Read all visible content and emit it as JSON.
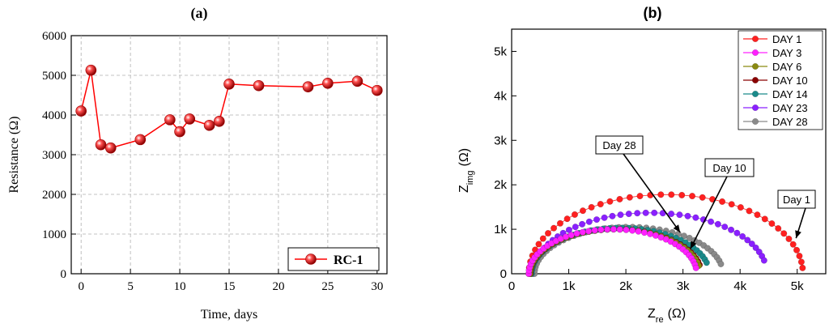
{
  "chart_data": [
    {
      "panel_label": "(a)",
      "type": "line",
      "xlabel": "Time, days",
      "ylabel": "Resistance (Ω)",
      "xlim": [
        -1,
        31
      ],
      "ylim": [
        0,
        6000
      ],
      "xticks": [
        "0",
        "5",
        "10",
        "15",
        "20",
        "25",
        "30"
      ],
      "yticks": [
        "0",
        "1000",
        "2000",
        "3000",
        "4000",
        "5000",
        "6000"
      ],
      "grid": true,
      "legend_position": "bottom-right",
      "series": [
        {
          "name": "RC-1",
          "color": "#ff0000",
          "marker": "sphere",
          "x": [
            0,
            1,
            2,
            3,
            6,
            9,
            10,
            11,
            13,
            14,
            15,
            18,
            23,
            25,
            28,
            30
          ],
          "y": [
            4100,
            5130,
            3250,
            3170,
            3380,
            3880,
            3580,
            3900,
            3740,
            3840,
            4780,
            4740,
            4710,
            4800,
            4850,
            4620
          ]
        }
      ]
    },
    {
      "panel_label": "(b)",
      "type": "scatter",
      "xlabel": "Z_re (Ω)",
      "xlabel_main": "Z",
      "xlabel_sub": "re",
      "xlabel_unit": "(Ω)",
      "ylabel_main": "Z",
      "ylabel_sub": "img",
      "ylabel_unit": "(Ω)",
      "xlim": [
        0,
        5500
      ],
      "ylim": [
        0,
        5500
      ],
      "xticks": [
        "0",
        "1k",
        "2k",
        "3k",
        "4k",
        "5k"
      ],
      "yticks": [
        "0",
        "1k",
        "2k",
        "3k",
        "4k",
        "5k"
      ],
      "grid": false,
      "legend_position": "top-right",
      "series": [
        {
          "name": "DAY 1",
          "color": "#ff2020",
          "r_start": 300,
          "r_end": 5100,
          "peak": 1780,
          "tail": 130
        },
        {
          "name": "DAY 3",
          "color": "#ff20ff",
          "r_start": 300,
          "r_end": 3240,
          "peak": 1000,
          "tail": 130
        },
        {
          "name": "DAY 6",
          "color": "#8a8a10",
          "r_start": 320,
          "r_end": 3300,
          "peak": 1000,
          "tail": 180
        },
        {
          "name": "DAY 10",
          "color": "#8a0000",
          "r_start": 330,
          "r_end": 3320,
          "peak": 1000,
          "tail": 200
        },
        {
          "name": "DAY 14",
          "color": "#1a8a8a",
          "r_start": 350,
          "r_end": 3460,
          "peak": 1030,
          "tail": 250
        },
        {
          "name": "DAY 23",
          "color": "#8a20ff",
          "r_start": 380,
          "r_end": 4470,
          "peak": 1370,
          "tail": 300
        },
        {
          "name": "DAY 28",
          "color": "#8a8a8a",
          "r_start": 400,
          "r_end": 3700,
          "peak": 1050,
          "tail": 220
        }
      ],
      "annotations": [
        {
          "text": "Day 28",
          "target": [
            2950,
            930
          ]
        },
        {
          "text": "Day 10",
          "target": [
            3130,
            560
          ]
        },
        {
          "text": "Day 1",
          "target": [
            4980,
            800
          ]
        }
      ]
    }
  ]
}
